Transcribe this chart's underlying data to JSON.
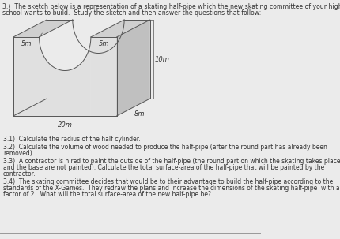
{
  "title_line1": "3.)  The sketch below is a representation of a skating half-pipe which the new skating committee of your high",
  "title_line2": "school wants to build.  Study the sketch and then answer the questions that follow:",
  "dim_5m_left": "5m",
  "dim_5m_right": "5m",
  "dim_10m": "10m",
  "dim_8m": "8m",
  "dim_20m": "20m",
  "q31": "3.1)  Calculate the radius of the half cylinder.",
  "q32_1": "3.2)  Calculate the volume of wood needed to produce the half-pipe (after the round part has already been",
  "q32_2": "removed).",
  "q33_1": "3.3)  A contractor is hired to paint the outside of the half-pipe (the round part on which the skating takes place",
  "q33_2": "and the base are not painted). Calculate the total surface-area of the half-pipe that will be painted by the",
  "q33_3": "contractor.",
  "q34_1": "3.4)  The skating committee decides that would be to their advantage to build the half-pipe according to the",
  "q34_2": "standards of the X-Games.  They redraw the plans and increase the dimensions of the skating half-pipe  with a",
  "q34_3": "factor of 2.  What will the total surface-area of the new half-pipe be?",
  "bg_color": "#ebebeb",
  "line_color": "#555555",
  "text_color": "#333333",
  "face_top_color": "#d0d0d0",
  "face_right_color": "#c0c0c0",
  "face_front_color": "#e0e0e0"
}
